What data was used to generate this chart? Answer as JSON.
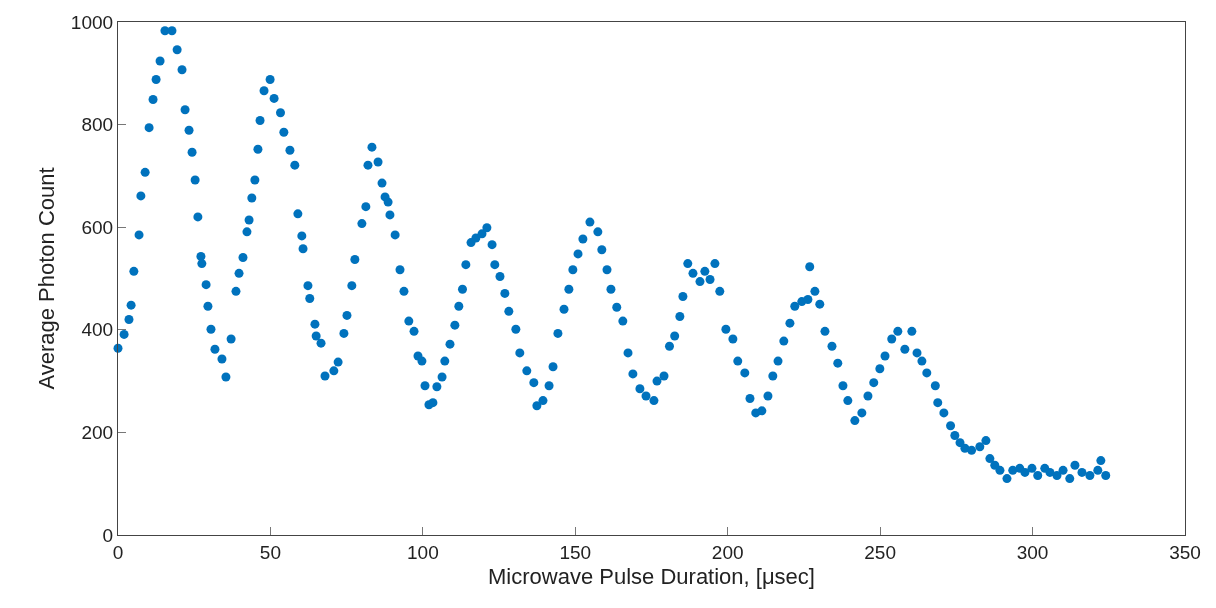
{
  "chart_data": {
    "type": "scatter",
    "xlabel": "Microwave Pulse Duration, [μsec]",
    "ylabel": "Average Photon Count",
    "xlim": [
      0,
      350
    ],
    "xticks": [
      0,
      50,
      100,
      150,
      200,
      250,
      300,
      350
    ],
    "ylim": [
      0,
      1000
    ],
    "yticks": [
      0,
      200,
      400,
      600,
      800,
      1000
    ],
    "marker": "circle",
    "series": [
      {
        "color": "#0072bd",
        "x": [
          0,
          2,
          3.6,
          4.3,
          5.2,
          6.9,
          7.5,
          8.9,
          10.2,
          11.5,
          12.5,
          13.8,
          15.4,
          17.7,
          19.4,
          21,
          22,
          23.3,
          24.3,
          25.3,
          26.2,
          27.2,
          27.5,
          28.9,
          29.5,
          30.5,
          31.8,
          34.1,
          35.4,
          37.1,
          38.7,
          39.7,
          41,
          42.3,
          43,
          43.9,
          44.9,
          45.9,
          46.6,
          47.9,
          49.9,
          51.2,
          53.3,
          54.4,
          56.4,
          58,
          59,
          60.3,
          60.7,
          62.3,
          62.9,
          64.6,
          65,
          66.6,
          67.9,
          70.8,
          72.2,
          74.1,
          75.1,
          76.7,
          77.7,
          80,
          81.3,
          82,
          83.3,
          85.3,
          86.6,
          87.6,
          88.6,
          89.2,
          90.9,
          92.5,
          93.8,
          95.4,
          97.1,
          98.4,
          99.7,
          100.7,
          102,
          103.3,
          104.6,
          106.3,
          107.2,
          108.9,
          110.5,
          111.8,
          113,
          114.1,
          115.8,
          117.4,
          119.4,
          121,
          122.7,
          123.6,
          125.3,
          126.9,
          128.2,
          130.5,
          131.8,
          134.1,
          136.4,
          137.4,
          139.4,
          141.4,
          142.7,
          144.3,
          146.3,
          147.9,
          149.2,
          150.9,
          152.5,
          154.8,
          157.4,
          158.7,
          160.4,
          161.7,
          163.6,
          165.6,
          167.3,
          168.9,
          171.2,
          173.2,
          175.8,
          176.8,
          179.1,
          180.9,
          182.6,
          184.3,
          185.3,
          186.9,
          188.6,
          190.9,
          192.5,
          194.2,
          195.8,
          197.4,
          199.4,
          201.7,
          203.3,
          205.6,
          207.3,
          209.2,
          211.2,
          213.2,
          214.8,
          216.5,
          218.4,
          220.4,
          222,
          224.3,
          226.3,
          226.9,
          228.6,
          230.2,
          231.9,
          234.2,
          236.1,
          237.8,
          239.4,
          241.7,
          244,
          246,
          247.9,
          249.9,
          251.6,
          253.8,
          255.8,
          258.1,
          260.4,
          262.1,
          263.7,
          265.3,
          268.1,
          268.9,
          270.9,
          273.1,
          274.5,
          276.2,
          277.8,
          280,
          282.7,
          284.7,
          286,
          287.6,
          289.3,
          291.6,
          293.5,
          295.8,
          297.5,
          299.8,
          301.7,
          304,
          305.7,
          308,
          310,
          312.2,
          313.9,
          316.2,
          318.8,
          321.4,
          322.4,
          324
        ],
        "values": [
          364,
          391,
          420,
          448,
          514,
          585,
          661,
          707,
          794,
          849,
          888,
          924,
          983,
          983,
          946,
          907,
          829,
          789,
          746,
          692,
          620,
          543,
          529,
          488,
          446,
          401,
          362,
          343,
          308,
          382,
          475,
          510,
          541,
          591,
          614,
          657,
          692,
          752,
          808,
          866,
          888,
          851,
          823,
          785,
          750,
          721,
          626,
          583,
          558,
          486,
          461,
          411,
          388,
          374,
          310,
          320,
          337,
          393,
          428,
          486,
          537,
          607,
          640,
          721,
          756,
          727,
          686,
          659,
          649,
          624,
          585,
          517,
          475,
          417,
          397,
          349,
          339,
          291,
          254,
          258,
          289,
          308,
          339,
          372,
          409,
          446,
          479,
          527,
          570,
          579,
          587,
          599,
          566,
          527,
          504,
          471,
          436,
          401,
          355,
          320,
          297,
          252,
          262,
          291,
          328,
          393,
          440,
          479,
          517,
          548,
          577,
          610,
          591,
          556,
          517,
          479,
          444,
          417,
          355,
          314,
          285,
          271,
          262,
          300,
          310,
          368,
          388,
          426,
          465,
          529,
          510,
          494,
          514,
          498,
          529,
          475,
          401,
          382,
          339,
          316,
          266,
          238,
          242,
          271,
          310,
          339,
          378,
          413,
          446,
          455,
          459,
          523,
          475,
          450,
          397,
          368,
          335,
          291,
          262,
          223,
          238,
          271,
          297,
          324,
          349,
          382,
          397,
          362,
          397,
          355,
          339,
          316,
          291,
          258,
          238,
          213,
          194,
          180,
          169,
          165,
          172,
          184,
          149,
          136,
          126,
          110,
          126,
          130,
          122,
          130,
          116,
          130,
          122,
          116,
          126,
          110,
          136,
          122,
          116,
          126,
          145,
          116
        ]
      }
    ]
  }
}
